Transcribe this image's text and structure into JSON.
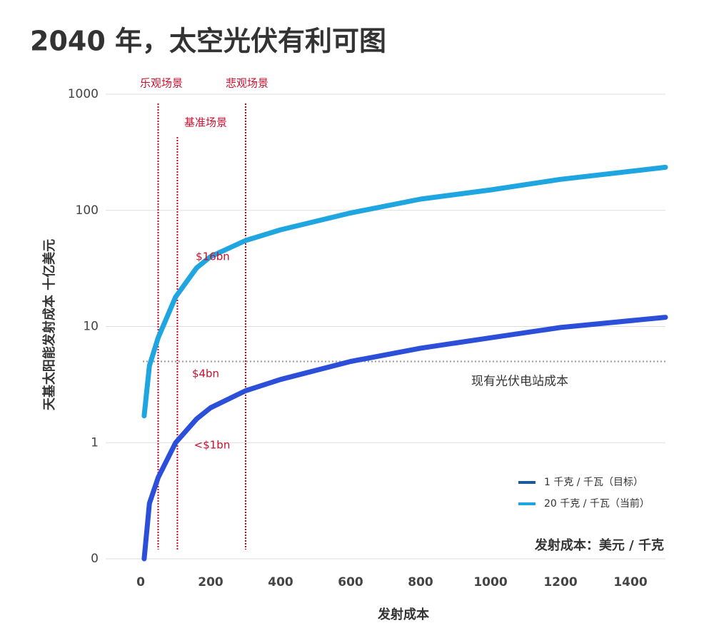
{
  "chart_data": {
    "type": "line",
    "title": "2040 年，太空光伏有利可图",
    "xlabel": "发射成本",
    "ylabel": "天基太阳能发射成本 十亿美元",
    "unit_note": "发射成本：美元 / 千克",
    "x": [
      10,
      25,
      50,
      100,
      160,
      200,
      300,
      400,
      600,
      800,
      1000,
      1200,
      1500
    ],
    "series": [
      {
        "name": "1 千克 / 千瓦（目标）",
        "color": "#2b4fd8",
        "legend_color": "#1d5a9c",
        "values": [
          0.1,
          0.3,
          0.5,
          1.0,
          1.6,
          2.0,
          2.8,
          3.5,
          5.0,
          6.5,
          8.0,
          9.8,
          12
        ]
      },
      {
        "name": "20 千克 / 千瓦（当前）",
        "color": "#1fa6e0",
        "legend_color": "#1fa6e0",
        "values": [
          1.7,
          4.6,
          8,
          18,
          32,
          40,
          55,
          68,
          95,
          125,
          150,
          185,
          235
        ]
      }
    ],
    "xlim": [
      -100,
      1500
    ],
    "xticks": [
      0,
      200,
      400,
      600,
      800,
      1000,
      1200,
      1400
    ],
    "ylim": [
      0.1,
      1000
    ],
    "yticks": [
      {
        "value": 0.1,
        "label": "0"
      },
      1,
      10,
      100,
      1000
    ],
    "log_y": true,
    "grid": true,
    "legend": "lower right",
    "scenarios": [
      {
        "x": 50,
        "label": "乐观场景"
      },
      {
        "x": 105,
        "label": "基准场景"
      },
      {
        "x": 300,
        "label": "悲观场景"
      }
    ],
    "reference_line": {
      "y": 5,
      "label": "现有光伏电站成本"
    },
    "annotations": [
      "$16bn",
      "$4bn",
      "<$1bn"
    ]
  }
}
